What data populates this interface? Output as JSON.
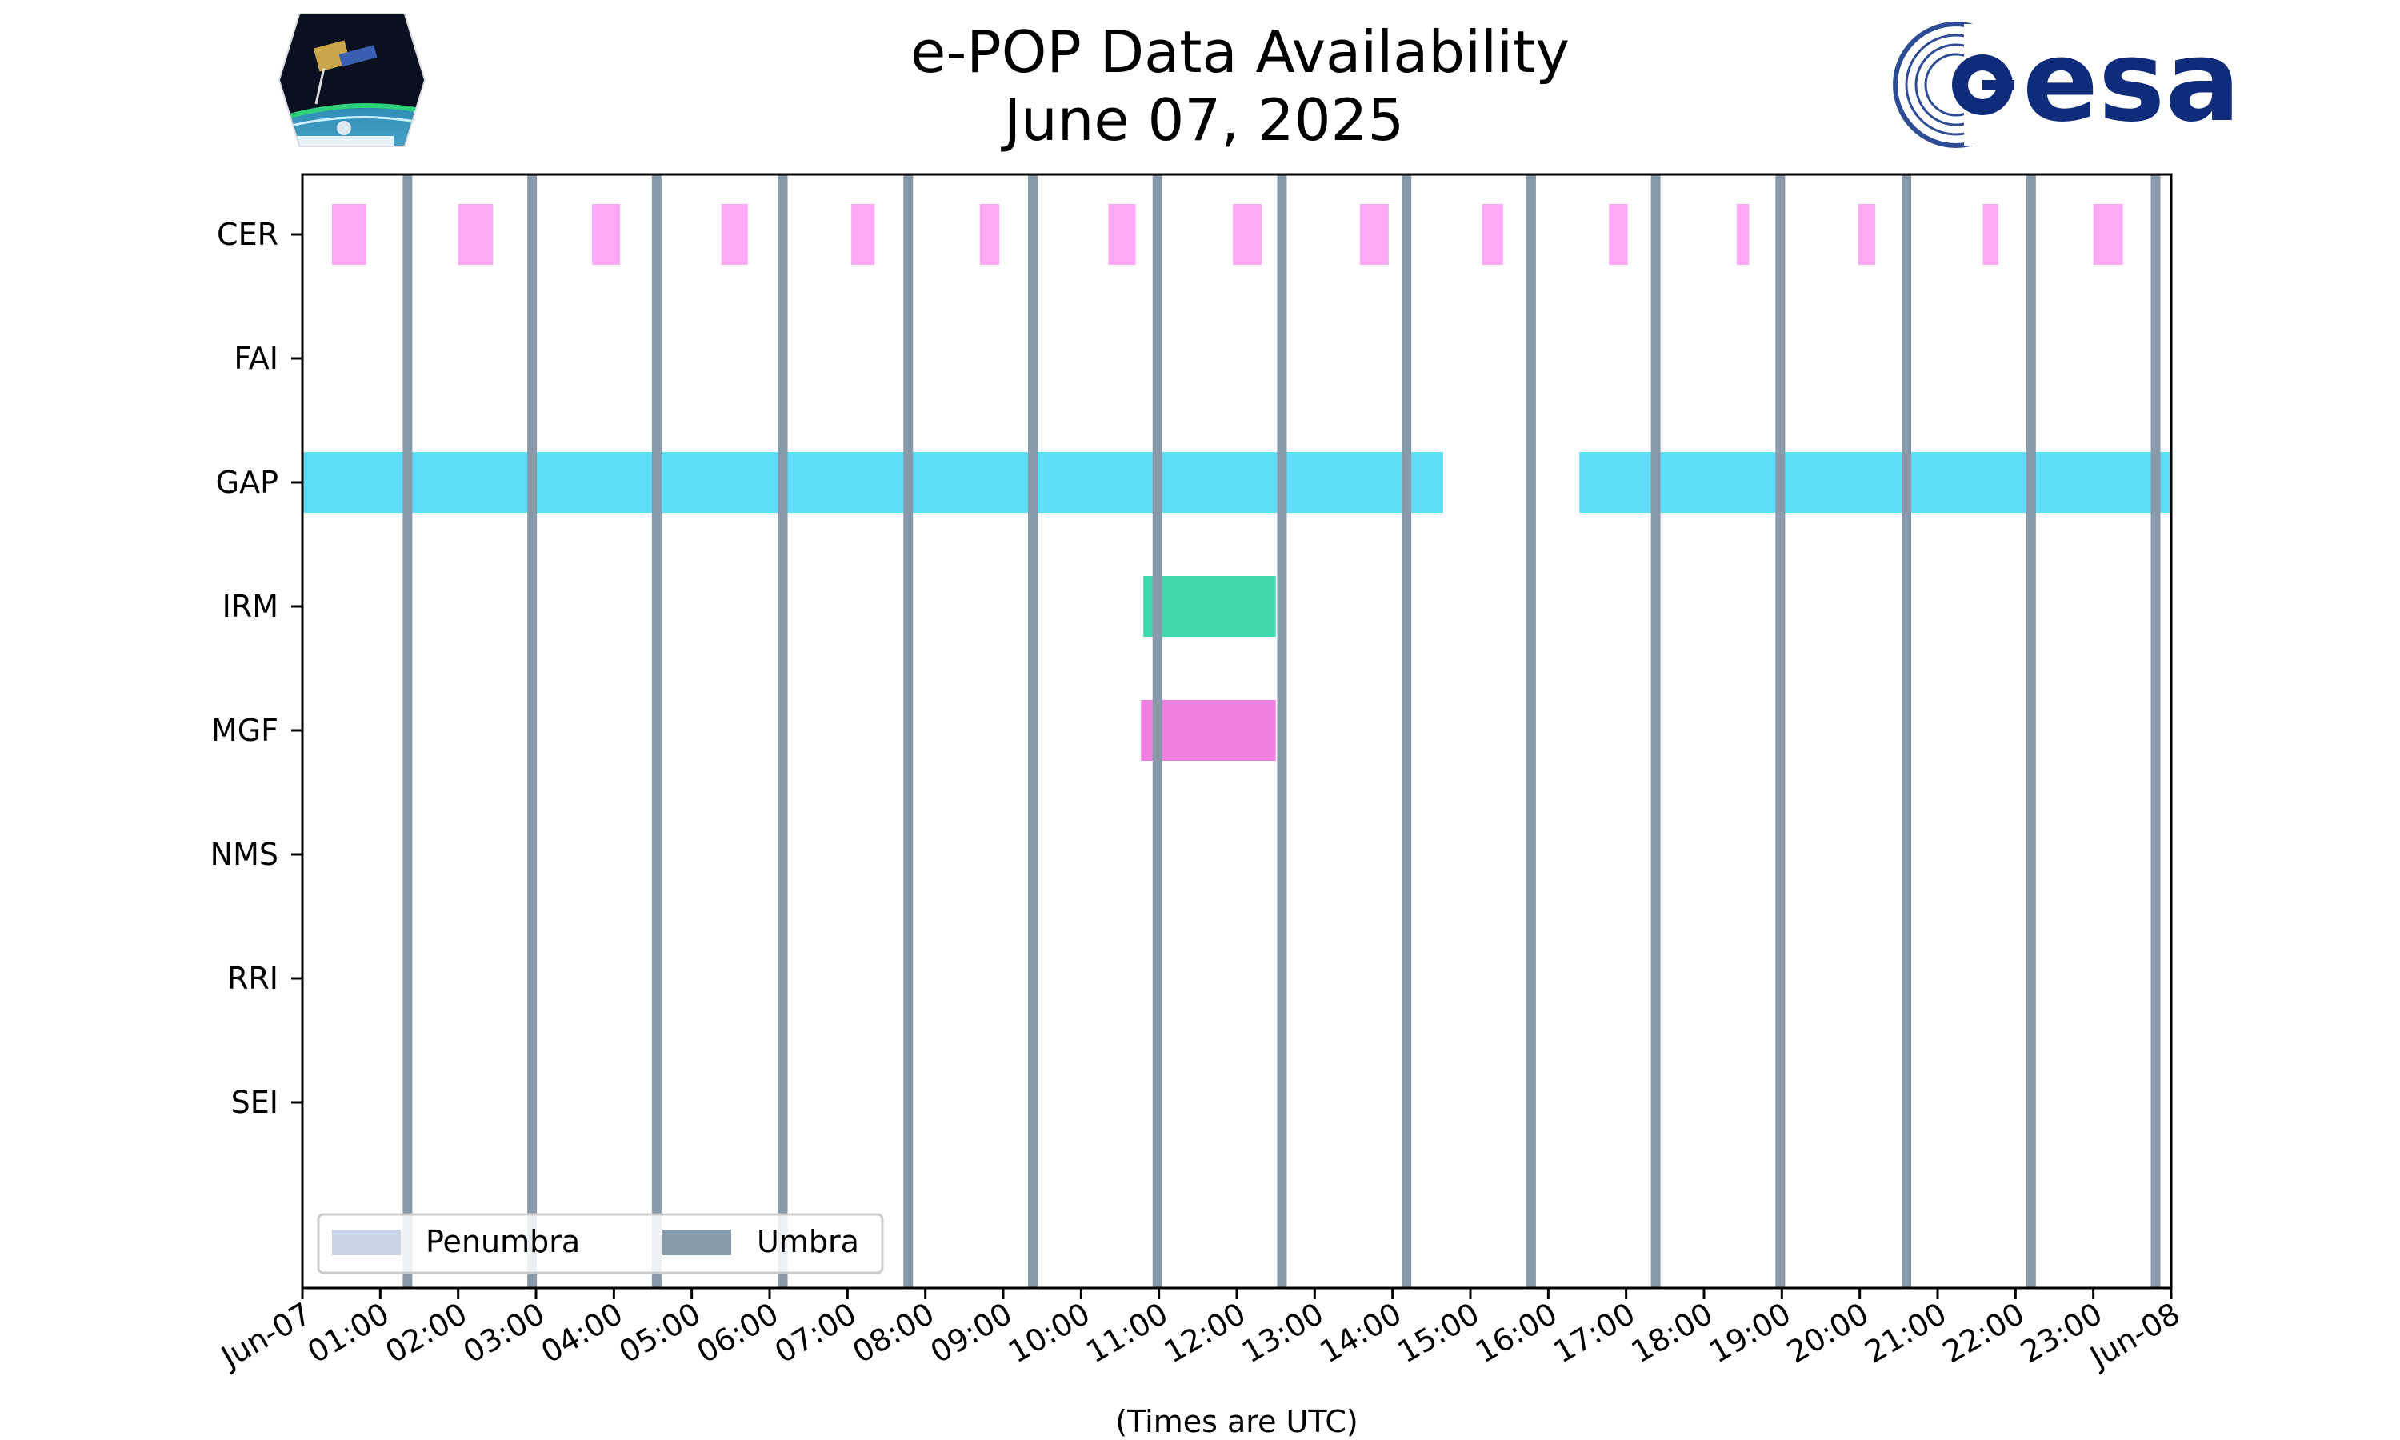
{
  "chart_data": {
    "type": "timeline",
    "title": "e-POP Data Availability",
    "subtitle": "June 07, 2025",
    "xlabel": "(Times are UTC)",
    "xlim": [
      0,
      24
    ],
    "x_tick_labels": [
      "Jun-07",
      "01:00",
      "02:00",
      "03:00",
      "04:00",
      "05:00",
      "06:00",
      "07:00",
      "08:00",
      "09:00",
      "10:00",
      "11:00",
      "12:00",
      "13:00",
      "14:00",
      "15:00",
      "16:00",
      "17:00",
      "18:00",
      "19:00",
      "20:00",
      "21:00",
      "22:00",
      "23:00",
      "Jun-08"
    ],
    "instruments": [
      "CER",
      "FAI",
      "GAP",
      "IRM",
      "MGF",
      "NMS",
      "RRI",
      "SEI"
    ],
    "series": [
      {
        "instrument": "CER",
        "color": "#ffa8f5",
        "intervals": [
          [
            0.38,
            0.82
          ],
          [
            2.0,
            2.45
          ],
          [
            3.72,
            4.08
          ],
          [
            5.38,
            5.72
          ],
          [
            7.05,
            7.35
          ],
          [
            8.7,
            8.95
          ],
          [
            10.35,
            10.7
          ],
          [
            11.95,
            12.32
          ],
          [
            13.58,
            13.95
          ],
          [
            15.15,
            15.42
          ],
          [
            16.78,
            17.02
          ],
          [
            18.42,
            18.58
          ],
          [
            19.98,
            20.2
          ],
          [
            21.58,
            21.78
          ],
          [
            23.0,
            23.38
          ]
        ]
      },
      {
        "instrument": "FAI",
        "color": "#ff8800",
        "intervals": []
      },
      {
        "instrument": "GAP",
        "color": "#5fdcf8",
        "intervals": [
          [
            0.0,
            14.65
          ],
          [
            16.4,
            24.0
          ]
        ]
      },
      {
        "instrument": "IRM",
        "color": "#40d7ac",
        "intervals": [
          [
            10.8,
            12.5
          ]
        ]
      },
      {
        "instrument": "MGF",
        "color": "#f07ee0",
        "intervals": [
          [
            10.77,
            12.5
          ]
        ]
      },
      {
        "instrument": "NMS",
        "color": "#888888",
        "intervals": []
      },
      {
        "instrument": "RRI",
        "color": "#888888",
        "intervals": []
      },
      {
        "instrument": "SEI",
        "color": "#888888",
        "intervals": []
      }
    ],
    "umbra": {
      "color": "#8899aa",
      "times": [
        1.35,
        2.95,
        4.55,
        6.17,
        7.78,
        9.38,
        10.98,
        12.58,
        14.18,
        15.78,
        17.38,
        18.98,
        20.6,
        22.2,
        23.8
      ]
    },
    "legend": {
      "position": "lower-left",
      "entries": [
        {
          "label": "Penumbra",
          "color": "#c8d4e3"
        },
        {
          "label": "Umbra",
          "color": "#8899aa"
        }
      ]
    },
    "logos": {
      "left": "cassiope-mission-patch",
      "right": "esa-logo",
      "right_text": "esa"
    }
  }
}
